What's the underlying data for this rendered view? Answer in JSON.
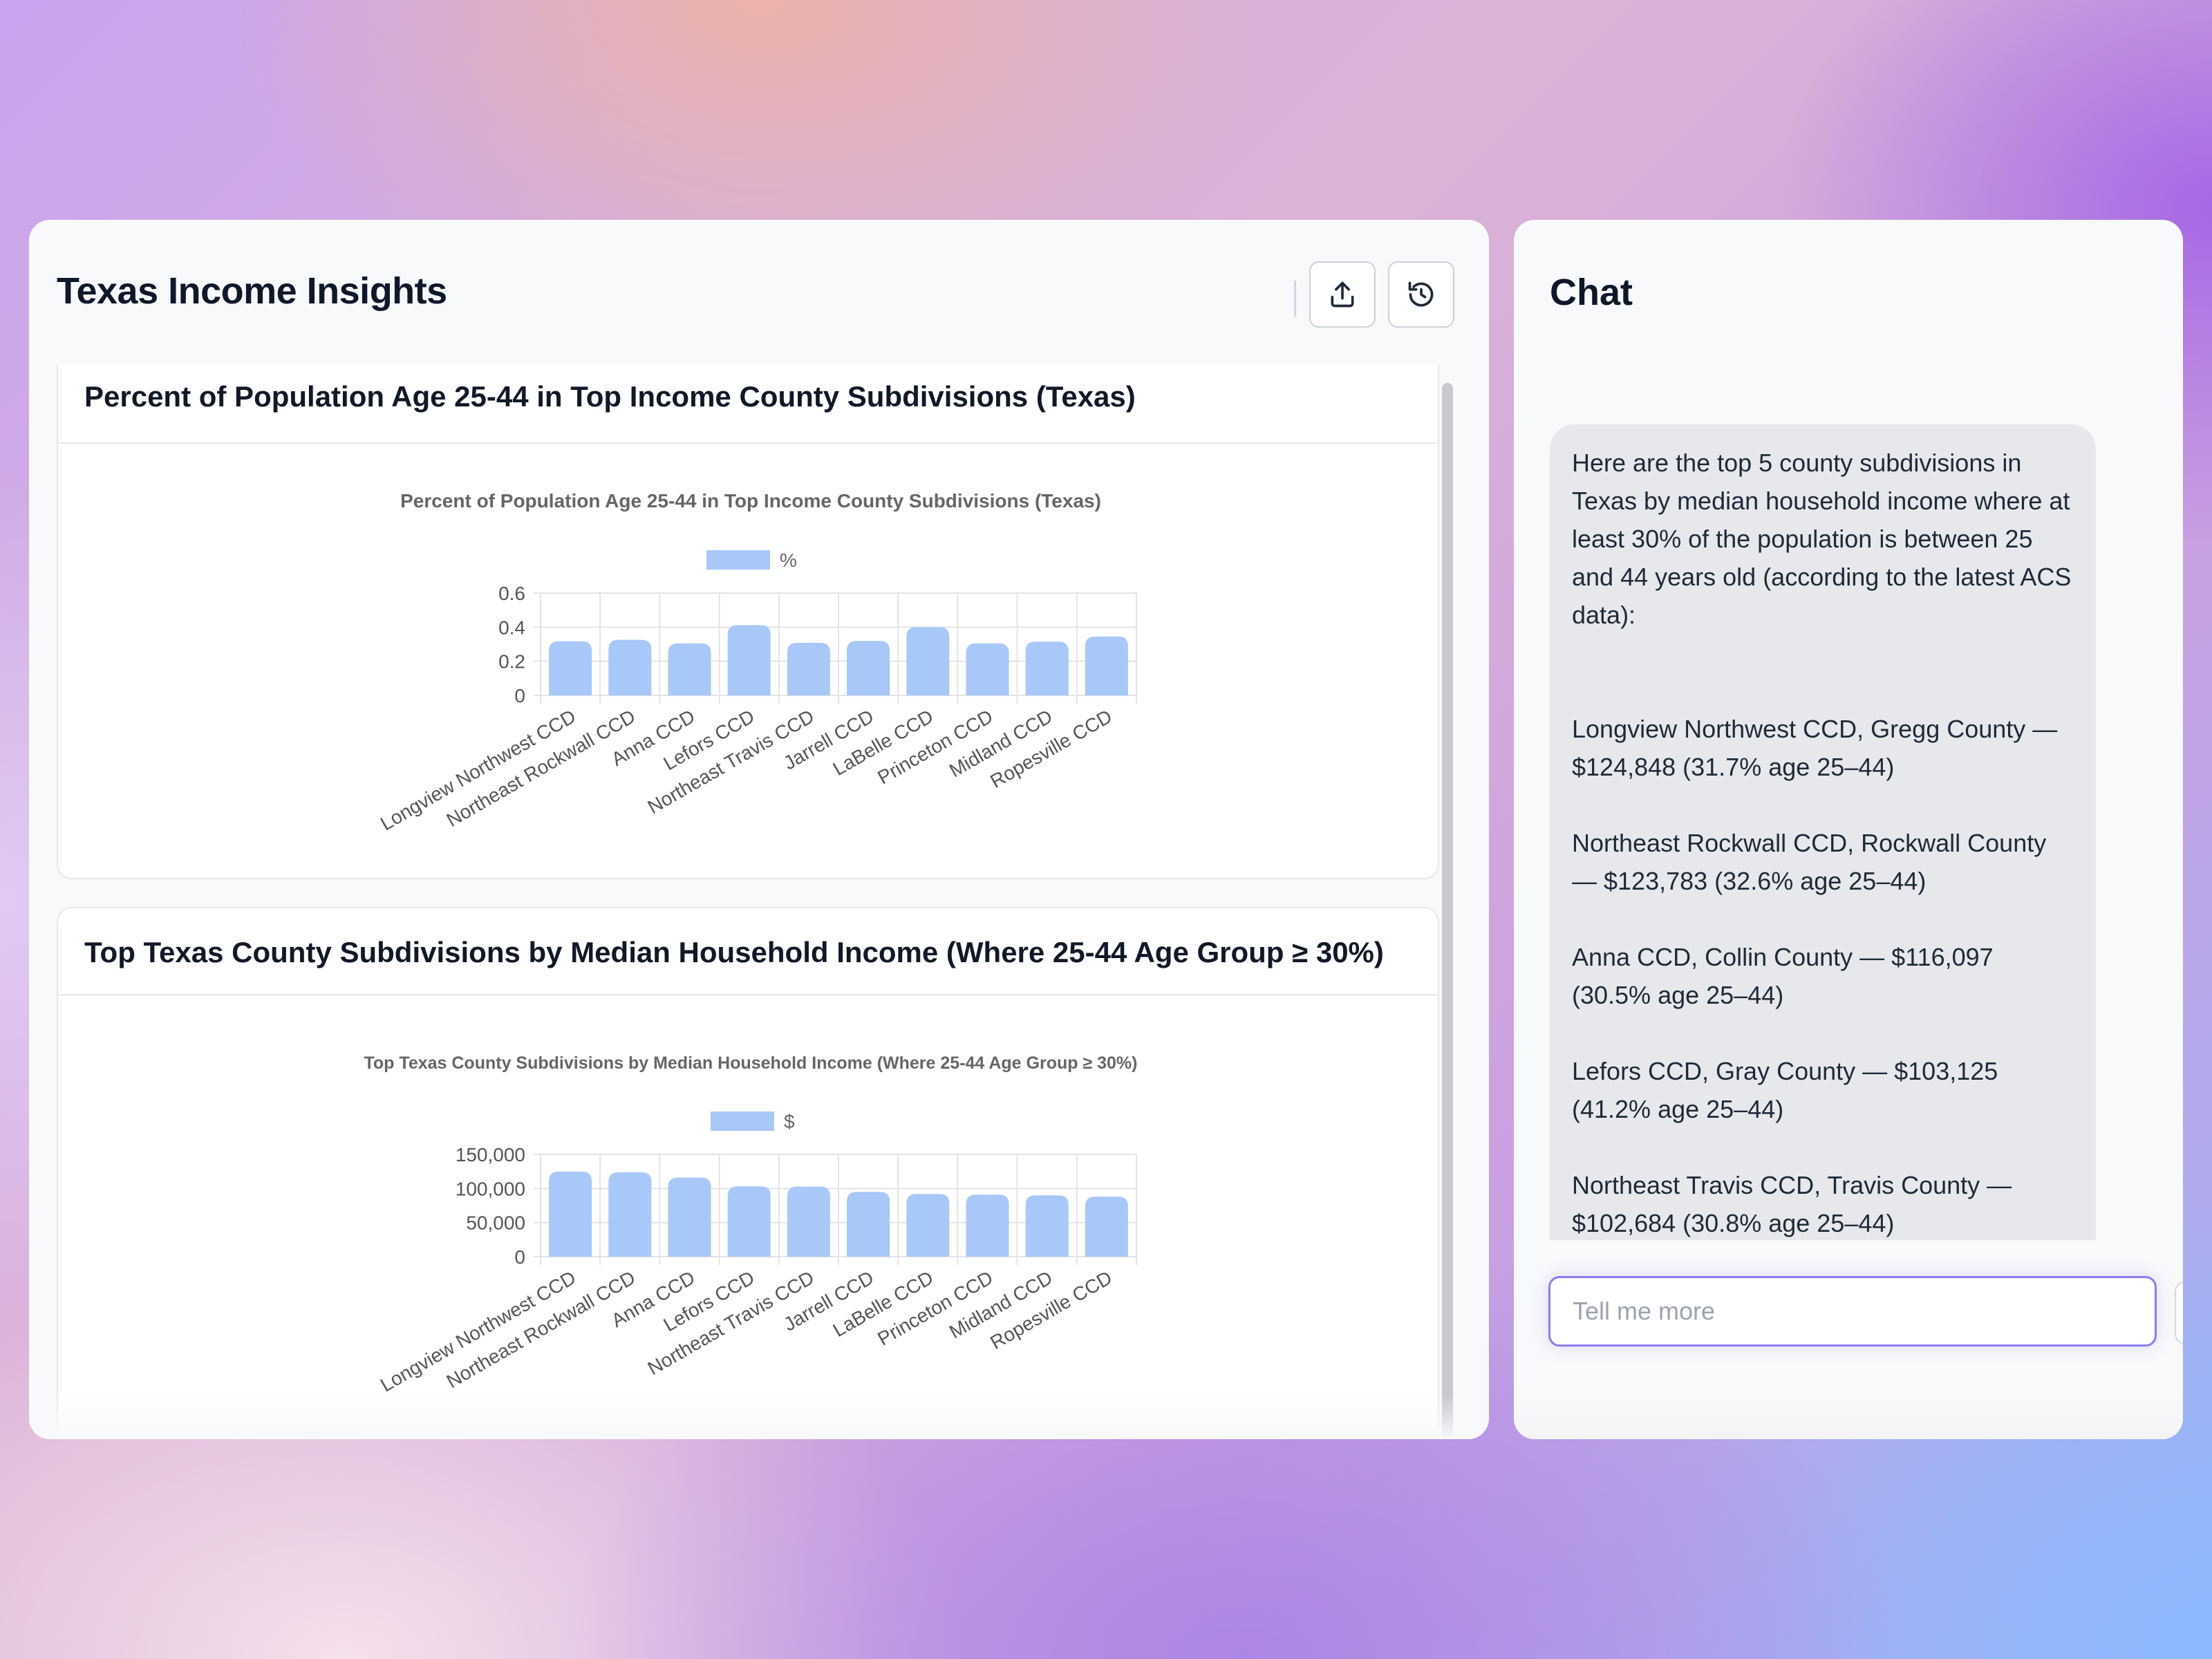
{
  "dashboard": {
    "title": "Texas Income Insights",
    "export_icon": "upload-icon",
    "history_icon": "history-icon"
  },
  "cards": [
    {
      "title": "Percent of Population Age 25-44 in Top Income County Subdivisions (Texas)"
    },
    {
      "title": "Top Texas County Subdivisions by Median Household Income (Where 25-44 Age Group ≥ 30%)"
    }
  ],
  "chart_data": [
    {
      "type": "bar",
      "title": "Percent of Population Age 25-44 in Top Income County Subdivisions (Texas)",
      "categories": [
        "Longview Northwest CCD",
        "Northeast Rockwall CCD",
        "Anna CCD",
        "Lefors CCD",
        "Northeast Travis CCD",
        "Jarrell CCD",
        "LaBelle CCD",
        "Princeton CCD",
        "Midland CCD",
        "Ropesville CCD"
      ],
      "series": [
        {
          "name": "%",
          "values": [
            0.317,
            0.326,
            0.305,
            0.412,
            0.308,
            0.32,
            0.4,
            0.305,
            0.315,
            0.345
          ]
        }
      ],
      "yticks": [
        "0",
        "0.2",
        "0.4",
        "0.6"
      ],
      "ylim": [
        0,
        0.6
      ],
      "legend": "top",
      "grid": true,
      "bar_color": "#a8c8f8"
    },
    {
      "type": "bar",
      "title": "Top Texas County Subdivisions by Median Household Income (Where 25-44 Age Group ≥ 30%)",
      "categories": [
        "Longview Northwest CCD",
        "Northeast Rockwall CCD",
        "Anna CCD",
        "Lefors CCD",
        "Northeast Travis CCD",
        "Jarrell CCD",
        "LaBelle CCD",
        "Princeton CCD",
        "Midland CCD",
        "Ropesville CCD"
      ],
      "series": [
        {
          "name": "$",
          "values": [
            124848,
            123783,
            116097,
            103125,
            102684,
            95000,
            92000,
            91000,
            90000,
            88000
          ]
        }
      ],
      "yticks": [
        "0",
        "50,000",
        "100,000",
        "150,000"
      ],
      "ylim": [
        0,
        150000
      ],
      "legend": "top",
      "grid": true,
      "bar_color": "#a8c8f8"
    }
  ],
  "chat": {
    "title": "Chat",
    "messages": [
      "Here are the top 5 county subdivisions in Texas by median household income where at least 30% of the population is between 25 and 44 years old (according to the latest ACS data):",
      "Longview Northwest CCD, Gregg County — $124,848 (31.7% age 25–44)",
      "Northeast Rockwall CCD, Rockwall County — $123,783 (32.6% age 25–44)",
      "Anna CCD, Collin County — $116,097 (30.5% age 25–44)",
      "Lefors CCD, Gray County — $103,125 (41.2% age 25–44)",
      "Northeast Travis CCD, Travis County — $102,684 (30.8% age 25–44)"
    ],
    "input_placeholder": "Tell me more"
  }
}
